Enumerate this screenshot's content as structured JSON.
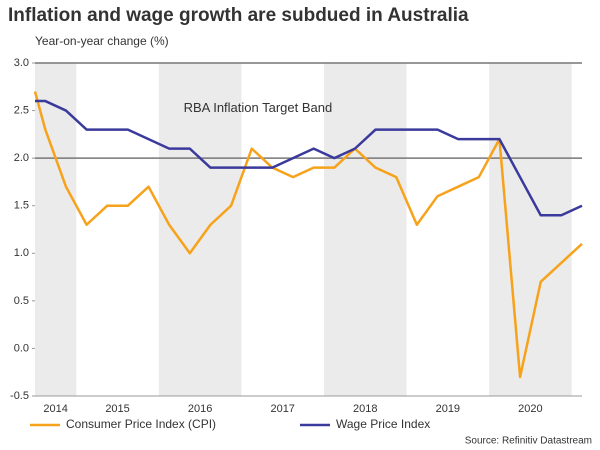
{
  "chart_data": {
    "type": "line",
    "title": "Inflation and wage growth are subdued in Australia",
    "y_axis_label": "Year-on-year change (%)",
    "annotation": "RBA Inflation Target Band",
    "source": "Source: Refinitiv Datastream",
    "target_band": [
      2,
      3
    ],
    "shaded_years": [
      2014,
      2016,
      2018,
      2020
    ],
    "xlim": [
      2014.5,
      2021.125
    ],
    "xticks": [
      {
        "value": 2014.75,
        "label": "2014"
      },
      {
        "value": 2015.5,
        "label": "2015"
      },
      {
        "value": 2016.5,
        "label": "2016"
      },
      {
        "value": 2017.5,
        "label": "2017"
      },
      {
        "value": 2018.5,
        "label": "2018"
      },
      {
        "value": 2019.5,
        "label": "2019"
      },
      {
        "value": 2020.5,
        "label": "2020"
      }
    ],
    "ylim": [
      -0.5,
      3.0
    ],
    "yticks": [
      {
        "value": -0.5,
        "label": "-0.5"
      },
      {
        "value": 0,
        "label": "0.0"
      },
      {
        "value": 0.5,
        "label": "0.5"
      },
      {
        "value": 1,
        "label": "1.0"
      },
      {
        "value": 1.5,
        "label": "1.5"
      },
      {
        "value": 2,
        "label": "2.0"
      },
      {
        "value": 2.5,
        "label": "2.5"
      },
      {
        "value": 3,
        "label": "3.0"
      }
    ],
    "x": [
      2014.5,
      2014.625,
      2014.875,
      2015.125,
      2015.375,
      2015.625,
      2015.875,
      2016.125,
      2016.375,
      2016.625,
      2016.875,
      2017.125,
      2017.375,
      2017.625,
      2017.875,
      2018.125,
      2018.375,
      2018.625,
      2018.875,
      2019.125,
      2019.375,
      2019.625,
      2019.875,
      2020.125,
      2020.375,
      2020.625,
      2020.875,
      2021.125
    ],
    "series": [
      {
        "name": "Consumer Price Index (CPI)",
        "color": "#f7a21b",
        "values": [
          2.7,
          2.3,
          1.7,
          1.3,
          1.5,
          1.5,
          1.7,
          1.3,
          1.0,
          1.3,
          1.5,
          2.1,
          1.9,
          1.8,
          1.9,
          1.9,
          2.1,
          1.9,
          1.8,
          1.3,
          1.6,
          1.7,
          1.8,
          2.2,
          -0.3,
          0.7,
          0.9,
          1.1
        ]
      },
      {
        "name": "Wage Price Index",
        "color": "#3a3a9c",
        "values": [
          2.6,
          2.6,
          2.5,
          2.3,
          2.3,
          2.3,
          2.2,
          2.1,
          2.1,
          1.9,
          1.9,
          1.9,
          1.9,
          2.0,
          2.1,
          2.0,
          2.1,
          2.3,
          2.3,
          2.3,
          2.3,
          2.2,
          2.2,
          2.2,
          1.8,
          1.4,
          1.4,
          1.5
        ]
      }
    ]
  }
}
